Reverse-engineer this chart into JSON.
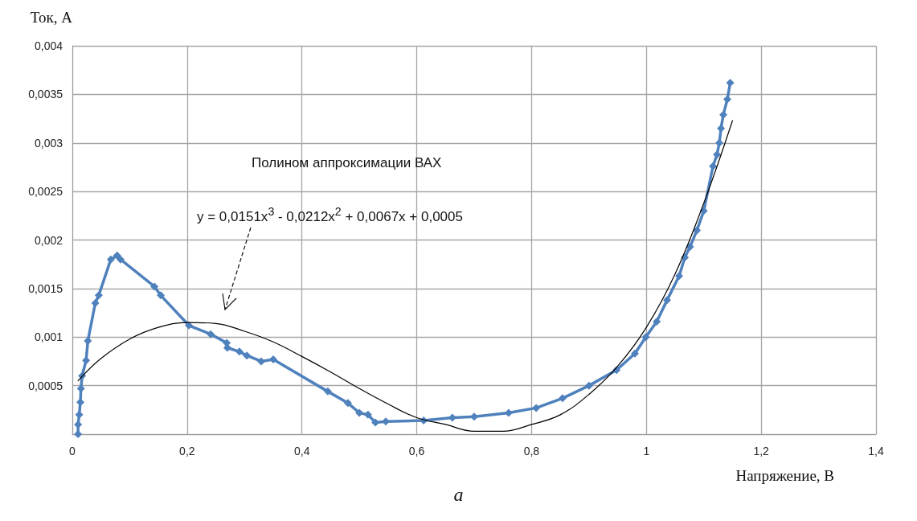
{
  "chart_data": {
    "type": "line",
    "xlabel": "Напряжение, В",
    "ylabel": "Ток, А",
    "xlim": [
      0,
      1.4
    ],
    "ylim": [
      0,
      0.004
    ],
    "xticks": [
      {
        "value": 0,
        "label": "0"
      },
      {
        "value": 0.2,
        "label": "0,2"
      },
      {
        "value": 0.4,
        "label": "0,4"
      },
      {
        "value": 0.6,
        "label": "0,6"
      },
      {
        "value": 0.8,
        "label": "0,8"
      },
      {
        "value": 1,
        "label": "1"
      },
      {
        "value": 1.2,
        "label": "1,2"
      },
      {
        "value": 1.4,
        "label": "1,4"
      }
    ],
    "yticks": [
      {
        "value": 0,
        "label": null
      },
      {
        "value": 0.0005,
        "label": "0,0005"
      },
      {
        "value": 0.001,
        "label": "0,001"
      },
      {
        "value": 0.0015,
        "label": "0,0015"
      },
      {
        "value": 0.002,
        "label": "0,002"
      },
      {
        "value": 0.0025,
        "label": "0,0025"
      },
      {
        "value": 0.003,
        "label": "0,003"
      },
      {
        "value": 0.0035,
        "label": "0,0035"
      },
      {
        "value": 0.004,
        "label": "0,004"
      }
    ],
    "grid": true,
    "series": [
      {
        "color": "#4f81bd",
        "marker": "diamond",
        "line_style": "solid",
        "x": [
          0.01,
          0.01,
          0.012,
          0.014,
          0.015,
          0.017,
          0.024,
          0.027,
          0.04,
          0.046,
          0.067,
          0.078,
          0.084,
          0.143,
          0.154,
          0.203,
          0.241,
          0.269,
          0.27,
          0.291,
          0.304,
          0.329,
          0.35,
          0.445,
          0.48,
          0.5,
          0.515,
          0.528,
          0.546,
          0.612,
          0.662,
          0.7,
          0.76,
          0.808,
          0.854,
          0.9,
          0.948,
          0.98,
          0.999,
          1.018,
          1.036,
          1.057,
          1.067,
          1.076,
          1.088,
          1.1,
          1.116,
          1.123,
          1.127,
          1.13,
          1.134,
          1.141,
          1.146
        ],
        "values": [
          0,
          0.0001,
          0.0002,
          0.00033,
          0.00047,
          0.0006,
          0.00076,
          0.00096,
          0.00135,
          0.00143,
          0.0018,
          0.00184,
          0.0018,
          0.00152,
          0.00143,
          0.00112,
          0.00103,
          0.00094,
          0.00089,
          0.00085,
          0.00081,
          0.00075,
          0.00077,
          0.00044,
          0.00032,
          0.00022,
          0.0002,
          0.00012,
          0.00013,
          0.00014,
          0.00017,
          0.00018,
          0.00022,
          0.00027,
          0.00037,
          0.0005,
          0.00066,
          0.00083,
          0.001,
          0.00116,
          0.00138,
          0.00163,
          0.00182,
          0.00193,
          0.0021,
          0.0023,
          0.00276,
          0.00288,
          0.003,
          0.00315,
          0.00329,
          0.00345,
          0.00362
        ]
      },
      {
        "color": "#000000",
        "marker": "none",
        "line_style": "solid",
        "x": [
          0.01,
          0.05,
          0.1,
          0.15,
          0.2,
          0.25,
          0.3,
          0.35,
          0.4,
          0.45,
          0.5,
          0.55,
          0.6,
          0.65,
          0.7,
          0.75,
          0.8,
          0.85,
          0.9,
          0.95,
          1,
          1.05,
          1.1,
          1.15
        ],
        "values": [
          0.00055,
          0.00078,
          0.00098,
          0.0011,
          0.00115,
          0.00114,
          0.00106,
          0.00095,
          0.0008,
          0.00064,
          0.00047,
          0.00031,
          0.00017,
          0.0001,
          3e-05,
          3e-05,
          0.0001,
          0.0002,
          0.00041,
          0.0007,
          0.0011,
          0.00165,
          0.00238,
          0.00323
        ]
      }
    ],
    "annotations": [
      "Полином аппроксимации ВАХ",
      "y = 0,0151x$^{3}$ - 0,0212x$^{2}$ + 0,0067x + 0,0005",
      "a"
    ]
  }
}
